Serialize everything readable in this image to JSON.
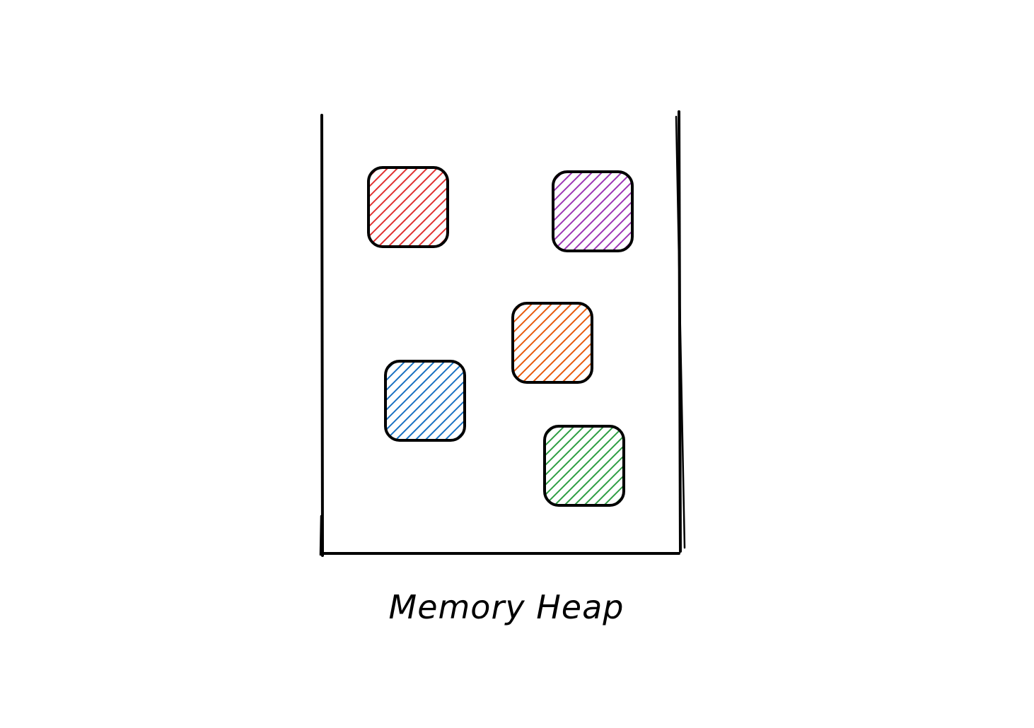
{
  "diagram": {
    "title": "Memory Heap",
    "container_stroke_color": "#000000",
    "blocks": [
      {
        "name": "red-block",
        "color": "#e03131"
      },
      {
        "name": "purple-block",
        "color": "#9c36b5"
      },
      {
        "name": "orange-block",
        "color": "#e8590c"
      },
      {
        "name": "blue-block",
        "color": "#1971c2"
      },
      {
        "name": "green-block",
        "color": "#2f9e44"
      }
    ]
  }
}
